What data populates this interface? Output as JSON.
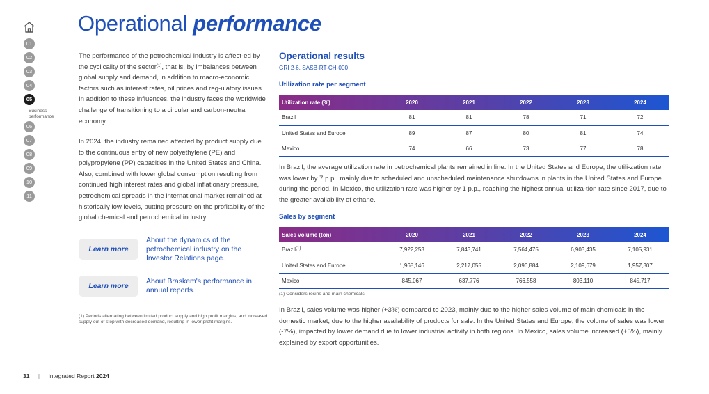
{
  "page_title": {
    "normal": "Operational",
    "bold": "performance"
  },
  "side_nav": {
    "items": [
      "01",
      "02",
      "03",
      "04",
      "05",
      "06",
      "07",
      "08",
      "09",
      "10",
      "11"
    ],
    "active_sub": "Business\nperformance"
  },
  "left": {
    "p1_a": "The performance of the petrochemical industry is affect-ed by the cyclicality of the sector",
    "p1_sup": "(1)",
    "p1_b": ", that is, by imbalances between global supply and demand, in addition to macro-economic factors such as interest rates, oil prices and reg-ulatory issues. In addition to these influences, the industry faces the worldwide challenge of transitioning to a circular and carbon-neutral economy.",
    "p2": "In 2024, the industry remained affected by product supply due to the continuous entry of new polyethylene (PE) and polypropylene (PP) capacities in the United States and China. Also, combined with lower global consumption resulting from continued high interest rates and global inflationary pressure, petrochemical spreads in the international market remained at historically low levels, putting pressure on the profitability of the global chemical and petrochemical industry.",
    "learn_more_label": "Learn more",
    "link1": "About the dynamics of the petrochemical industry on the Investor Relations page.",
    "link2": "About Braskem's performance in annual reports.",
    "footnote": "(1) Periods alternating between limited product supply and high profit margins, and increased supply out of step with decreased demand, resulting in lower profit margins."
  },
  "right": {
    "section_title": "Operational results",
    "section_sub": "GRI 2-6, SASB-RT-CH-000",
    "util_title": "Utilization rate per segment",
    "util_table": {
      "headers": [
        "Utilization rate (%)",
        "2020",
        "2021",
        "2022",
        "2023",
        "2024"
      ],
      "rows": [
        [
          "Brazil",
          "81",
          "81",
          "78",
          "71",
          "72"
        ],
        [
          "United States and Europe",
          "89",
          "87",
          "80",
          "81",
          "74"
        ],
        [
          "Mexico",
          "74",
          "66",
          "73",
          "77",
          "78"
        ]
      ]
    },
    "util_text": "In Brazil, the average utilization rate in petrochemical plants remained in line. In the United States and Europe, the utili-zation rate was lower by 7 p.p., mainly due to scheduled and unscheduled maintenance shutdowns in plants in the United States and Europe during the period. In Mexico, the utilization rate was higher by 1 p.p., reaching the highest annual utiliza-tion rate since 2017, due to the greater availability of ethane.",
    "sales_title": "Sales by segment",
    "sales_table": {
      "headers": [
        "Sales volume (ton)",
        "2020",
        "2021",
        "2022",
        "2023",
        "2024"
      ],
      "rows": [
        [
          "Brazil",
          "7,922,253",
          "7,843,741",
          "7,564,475",
          "6,903,435",
          "7,105,931"
        ],
        [
          "United States and Europe",
          "1,968,146",
          "2,217,055",
          "2,096,884",
          "2,109,679",
          "1,957,307"
        ],
        [
          "Mexico",
          "845,067",
          "637,776",
          "766,558",
          "803,110",
          "845,717"
        ]
      ],
      "brazil_sup": "(1)"
    },
    "sales_footnote": "(1) Considers resins and main chemicals.",
    "sales_text": "In Brazil, sales volume was higher (+3%) compared to 2023, mainly due to the higher sales volume of main chemicals in the domestic market, due to the higher availability of products for sale. In the United States and Europe, the volume of sales was lower (-7%), impacted by lower demand due to lower industrial activity in both regions. In Mexico, sales volume increased (+5%), mainly explained by export opportunities."
  },
  "footer": {
    "page_number": "31",
    "report": "Integrated Report",
    "year": "2024"
  }
}
